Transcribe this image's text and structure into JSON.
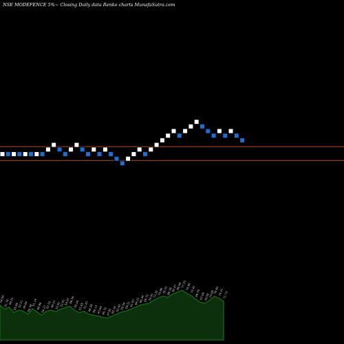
{
  "header": {
    "text": "NSE MODEFENCE 5%~  Closing Daily data  Renko  charts MunafaSutra.com"
  },
  "colors": {
    "background": "#000000",
    "up_brick": "#ffffff",
    "down_brick": "#1a6fd6",
    "level_line": "#b5501e",
    "volume_fill": "#0b300b",
    "volume_line": "#127312"
  },
  "chart_data": {
    "type": "renko",
    "symbol": "MODEFENCE",
    "exchange": "NSE",
    "box_size": "5%",
    "bricks": [
      {
        "dir": "up",
        "level": 0
      },
      {
        "dir": "down",
        "level": 0
      },
      {
        "dir": "up",
        "level": 0
      },
      {
        "dir": "down",
        "level": 0
      },
      {
        "dir": "up",
        "level": 0
      },
      {
        "dir": "down",
        "level": 0
      },
      {
        "dir": "up",
        "level": 0
      },
      {
        "dir": "down",
        "level": 0
      },
      {
        "dir": "up",
        "level": 1
      },
      {
        "dir": "up",
        "level": 2
      },
      {
        "dir": "down",
        "level": 1
      },
      {
        "dir": "down",
        "level": 0
      },
      {
        "dir": "up",
        "level": 1
      },
      {
        "dir": "up",
        "level": 2
      },
      {
        "dir": "down",
        "level": 1
      },
      {
        "dir": "down",
        "level": 0
      },
      {
        "dir": "up",
        "level": 1
      },
      {
        "dir": "down",
        "level": 0
      },
      {
        "dir": "up",
        "level": 1
      },
      {
        "dir": "down",
        "level": 0
      },
      {
        "dir": "down",
        "level": -1
      },
      {
        "dir": "down",
        "level": -2
      },
      {
        "dir": "up",
        "level": -1
      },
      {
        "dir": "up",
        "level": 0
      },
      {
        "dir": "up",
        "level": 1
      },
      {
        "dir": "down",
        "level": 0
      },
      {
        "dir": "up",
        "level": 1
      },
      {
        "dir": "up",
        "level": 2
      },
      {
        "dir": "up",
        "level": 3
      },
      {
        "dir": "up",
        "level": 4
      },
      {
        "dir": "up",
        "level": 5
      },
      {
        "dir": "down",
        "level": 4
      },
      {
        "dir": "up",
        "level": 5
      },
      {
        "dir": "up",
        "level": 6
      },
      {
        "dir": "up",
        "level": 7
      },
      {
        "dir": "down",
        "level": 6
      },
      {
        "dir": "down",
        "level": 5
      },
      {
        "dir": "down",
        "level": 4
      },
      {
        "dir": "up",
        "level": 5
      },
      {
        "dir": "down",
        "level": 4
      },
      {
        "dir": "up",
        "level": 5
      },
      {
        "dir": "down",
        "level": 4
      },
      {
        "dir": "down",
        "level": 3
      }
    ],
    "volume": [
      70,
      62,
      66,
      55,
      60,
      58,
      52,
      63,
      56,
      50,
      58,
      60,
      57,
      62,
      65,
      68,
      60,
      55,
      58,
      52,
      50,
      48,
      46,
      44,
      48,
      52,
      56,
      58,
      62,
      66,
      70,
      72,
      74,
      80,
      85,
      88,
      86,
      92,
      96,
      100,
      95,
      90,
      82,
      76,
      74,
      80,
      88,
      84,
      78
    ],
    "volume_labels": [
      "54.50",
      "51.76",
      "49.21",
      "55.04",
      "52.21",
      "49.64",
      "55.38",
      "51.14",
      "48.86",
      "54.27",
      "52.10",
      "49.21",
      "53.91",
      "52.41",
      "54.97",
      "58.34",
      "55.24",
      "53.65",
      "51.43",
      "48.28",
      "46.13",
      "43.64",
      "45.72",
      "47.81",
      "50.16",
      "52.42",
      "55.54",
      "58.51",
      "61.87",
      "64.21",
      "66.34",
      "68.72",
      "70.91",
      "73.32",
      "75.68",
      "78.10",
      "80.30",
      "82.47",
      "80.46",
      "77.33",
      "74.06",
      "72.41",
      "69.75",
      "67.09",
      "70.58",
      "73.68",
      "76.62",
      "74.21",
      "71.73"
    ],
    "reference_levels": [
      2,
      -1
    ],
    "grid": false
  }
}
